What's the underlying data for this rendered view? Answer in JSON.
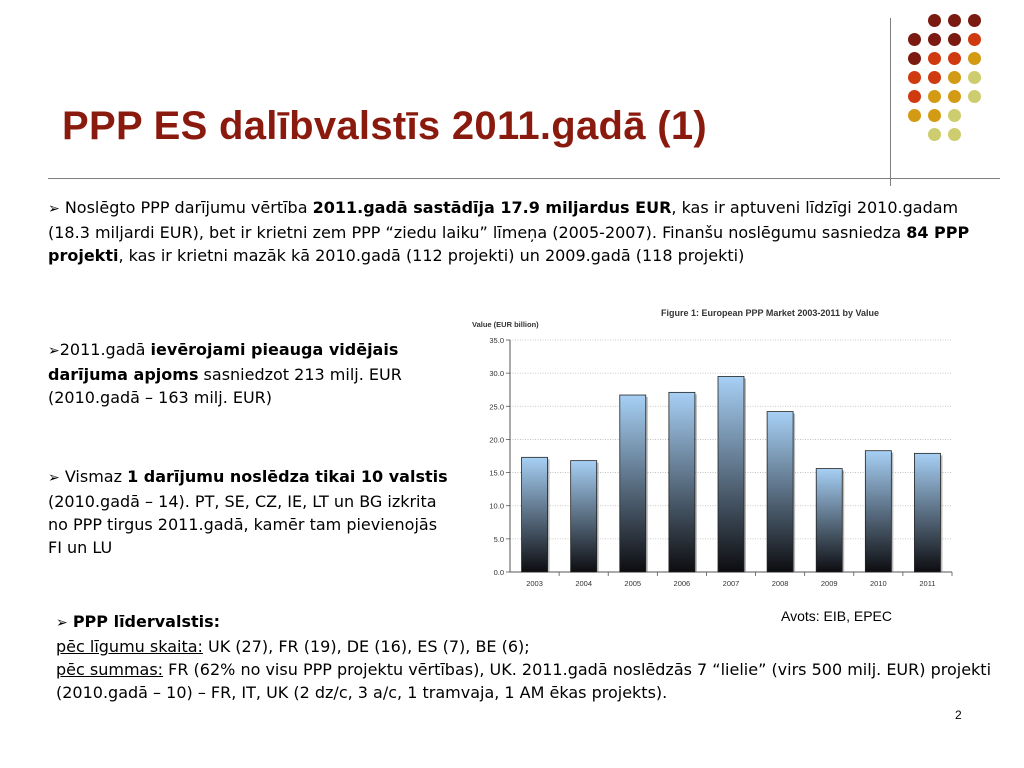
{
  "slide": {
    "title": "PPP ES dalībvalstīs 2011.gadā (1)",
    "page_number": "2"
  },
  "paragraph1": {
    "t1": "Noslēgto PPP darījumu vērtība ",
    "b1": "2011.gadā sastādīja 17.9 miljardus EUR",
    "t2": ", kas ir aptuveni līdzīgi 2010.gadam (18.3 miljardi EUR), bet ir krietni zem PPP “ziedu laiku” līmeņa (2005-2007). Finanšu noslēgumu sasniedza ",
    "b2": "84 PPP projekti",
    "t3": ", kas ir krietni mazāk kā 2010.gadā (112 projekti) un 2009.gadā (118 projekti)"
  },
  "paragraph2": {
    "t1": "2011.gadā ",
    "b1": "ievērojami pieauga vidējais darījuma apjoms",
    "t2": " sasniedzot 213 milj. EUR (2010.gadā – 163 milj. EUR)"
  },
  "paragraph3": {
    "t1": "Vismaz ",
    "b1": "1 darījumu noslēdza tikai 10 valstis",
    "t2": " (2010.gadā – 14). PT, SE, CZ, IE, LT un BG izkrita no PPP tirgus 2011.gadā, kamēr tam pievienojās FI un LU"
  },
  "paragraph4": {
    "heading": "PPP līdervalstis:",
    "u1": "pēc līgumu skaita:",
    "t1": " UK (27), FR (19), DE (16), ES (7), BE (6);",
    "u2": "pēc summas:",
    "t2": " FR (62% no visu PPP projektu vērtības), UK. 2011.gadā noslēdzās 7 “lielie” (virs 500 milj. EUR) projekti (2010.gadā – 10) – FR, IT, UK (2 dz/c, 3 a/c, 1 tramvaja, 1 AM ēkas projekts)."
  },
  "source_note": "Avots: EIB, EPEC",
  "chart_data": {
    "type": "bar",
    "title": "Figure 1: European PPP Market 2003-2011 by Value",
    "ylabel": "Value (EUR billion)",
    "xlabel": "",
    "categories": [
      "2003",
      "2004",
      "2005",
      "2006",
      "2007",
      "2008",
      "2009",
      "2010",
      "2011"
    ],
    "values": [
      17.3,
      16.8,
      26.7,
      27.1,
      29.5,
      24.2,
      15.6,
      18.3,
      17.9
    ],
    "ylim": [
      0,
      35
    ],
    "yticks": [
      "0.0",
      "5.0",
      "10.0",
      "15.0",
      "20.0",
      "25.0",
      "30.0",
      "35.0"
    ],
    "grid": true,
    "bar_gradient": [
      "#a7d0f5",
      "#0d0d10"
    ]
  },
  "decor": {
    "dot_colors": [
      "#7b1a10",
      "#cf3a10",
      "#d39b14",
      "#cdcd70"
    ]
  }
}
